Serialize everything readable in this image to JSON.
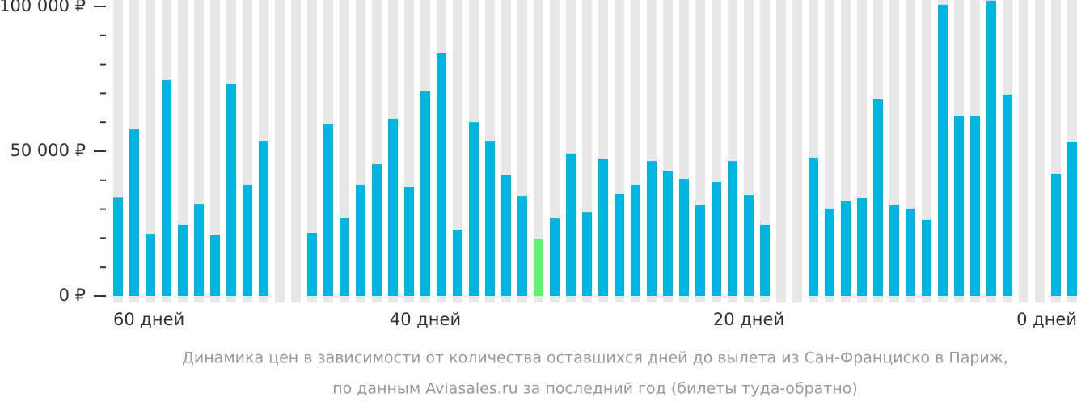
{
  "chart_data": {
    "type": "bar",
    "caption": [
      "Динамика цен в зависимости от количества оставшихся дней до вылета из Сан-Франциско в Париж,",
      "по данным Aviasales.ru за последний год (билеты туда-обратно)"
    ],
    "x": [
      59,
      58,
      57,
      56,
      55,
      54,
      53,
      52,
      51,
      50,
      49,
      48,
      47,
      46,
      45,
      44,
      43,
      42,
      41,
      40,
      39,
      38,
      37,
      36,
      35,
      34,
      33,
      32,
      31,
      30,
      29,
      28,
      27,
      26,
      25,
      24,
      23,
      22,
      21,
      20,
      19,
      18,
      17,
      16,
      15,
      14,
      13,
      12,
      11,
      10,
      9,
      8,
      7,
      6,
      5,
      4,
      3,
      2,
      1,
      0
    ],
    "values": [
      34000,
      57500,
      21500,
      74600,
      24600,
      31800,
      21000,
      73200,
      38300,
      53600,
      null,
      null,
      21800,
      59500,
      26800,
      38300,
      45500,
      61200,
      37700,
      70700,
      83800,
      22900,
      60000,
      53600,
      41900,
      34600,
      19800,
      26800,
      49200,
      29000,
      47500,
      35200,
      38300,
      46600,
      43300,
      40500,
      31300,
      39400,
      46600,
      34900,
      24600,
      null,
      null,
      47800,
      30200,
      32700,
      33800,
      67900,
      31300,
      30200,
      26300,
      100600,
      62000,
      62000,
      102000,
      69600,
      null,
      null,
      42200,
      53100
    ],
    "color": "#00b4e0",
    "min_color": "#66ee77",
    "slot_color": "#e8e8e8",
    "xlim": [
      60,
      0
    ],
    "xticks": [
      {
        "value": 60,
        "label": "60 дней"
      },
      {
        "value": 40,
        "label": "40 дней"
      },
      {
        "value": 20,
        "label": "20 дней"
      },
      {
        "value": 0,
        "label": "0 дней"
      }
    ],
    "ylim": [
      0,
      100000
    ],
    "yticks": [
      {
        "value": 0,
        "label": "0 ₽"
      },
      {
        "value": 50000,
        "label": "50 000 ₽"
      },
      {
        "value": 100000,
        "label": "100 000 ₽"
      }
    ],
    "minor_yticks": [
      10000,
      20000,
      30000,
      40000,
      60000,
      70000,
      80000,
      90000
    ]
  }
}
